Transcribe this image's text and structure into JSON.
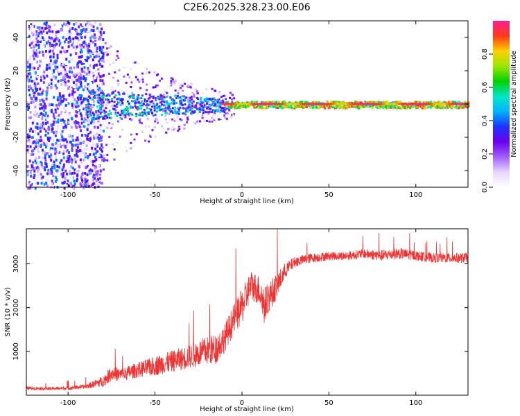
{
  "title": "C2E6.2025.328.23.00.E06",
  "colors": {
    "signal": "#ee3333",
    "background": "#ffffff",
    "colormap": [
      "#ffffff",
      "#e6d5ff",
      "#a060ff",
      "#6a00ee",
      "#1d33ff",
      "#00b3ff",
      "#00e6c8",
      "#00d000",
      "#9ae600",
      "#ffd000",
      "#ff3a1a",
      "#ff1f8f"
    ]
  },
  "chart_data": [
    {
      "type": "heatmap",
      "title": "",
      "xlabel": "Height of straight line (km)",
      "ylabel": "Frequency (Hz)",
      "xlim": [
        -124,
        130
      ],
      "ylim": [
        -50,
        50
      ],
      "xticks": [
        -100,
        -50,
        0,
        50,
        100
      ],
      "xtick_labels": [
        "-100",
        "-50",
        "0",
        "50",
        "100"
      ],
      "yticks": [
        -40,
        -20,
        0,
        20,
        40
      ],
      "ytick_labels": [
        "-40",
        "-20",
        "0",
        "20",
        "40"
      ],
      "description_of_values": "Normalized spectral amplitude; broad scatter below -85 km, concentrated band near 0 Hz from -90 km onward, strongest (approx 0.8-1.0) near 0 Hz between 0 and 130 km",
      "colorbar": {
        "label": "Normalized spectral amplitude",
        "range": [
          0,
          1
        ],
        "ticks": [
          0.0,
          0.2,
          0.4,
          0.6,
          0.8
        ],
        "tick_labels": [
          "0.0",
          "0.2",
          "0.4",
          "0.6",
          "0.8"
        ]
      }
    },
    {
      "type": "line",
      "title": "",
      "xlabel": "Height of straight line (km)",
      "ylabel": "SNR (10 * v/v)",
      "xlim": [
        -124,
        130
      ],
      "ylim": [
        0,
        3800
      ],
      "xticks": [
        -100,
        -50,
        0,
        50,
        100
      ],
      "xtick_labels": [
        "-100",
        "-50",
        "0",
        "50",
        "100"
      ],
      "yticks": [
        1000,
        2000,
        3000
      ],
      "ytick_labels": [
        "1000",
        "2000",
        "3000"
      ],
      "series": [
        {
          "name": "SNR",
          "x": [
            -124,
            -110,
            -100,
            -90,
            -80,
            -75,
            -70,
            -60,
            -50,
            -40,
            -30,
            -22,
            -15,
            -10,
            -5,
            0,
            5,
            10,
            13,
            15,
            20,
            25,
            30,
            40,
            50,
            60,
            70,
            80,
            90,
            100,
            110,
            120,
            130
          ],
          "base": [
            150,
            140,
            150,
            180,
            280,
            450,
            420,
            520,
            600,
            700,
            800,
            900,
            950,
            1200,
            1600,
            1900,
            2400,
            2300,
            1900,
            2100,
            2400,
            2800,
            3000,
            3100,
            3150,
            3150,
            3200,
            3150,
            3200,
            3150,
            3100,
            3100,
            3100
          ],
          "noise": [
            80,
            70,
            80,
            100,
            250,
            350,
            300,
            350,
            450,
            500,
            550,
            650,
            700,
            650,
            700,
            800,
            700,
            700,
            900,
            700,
            600,
            350,
            250,
            220,
            200,
            200,
            220,
            250,
            260,
            230,
            220,
            230,
            240
          ]
        }
      ]
    }
  ]
}
